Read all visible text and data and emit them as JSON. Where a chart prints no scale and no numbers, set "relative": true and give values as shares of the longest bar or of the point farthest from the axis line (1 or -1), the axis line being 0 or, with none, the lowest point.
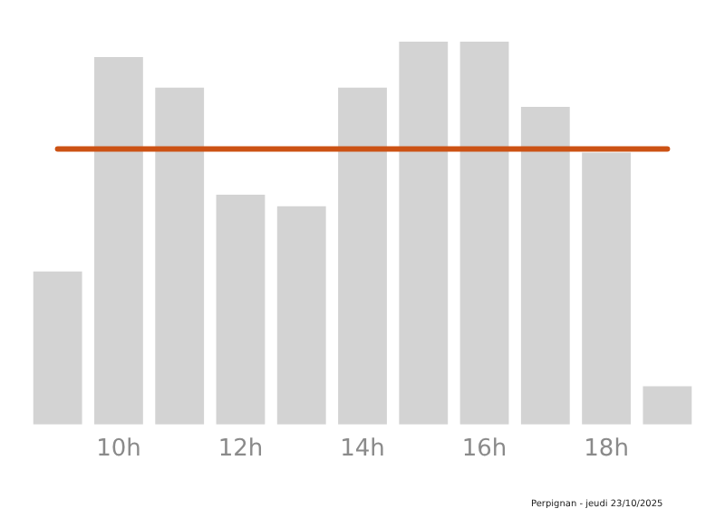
{
  "chart_data": {
    "type": "bar",
    "relative": true,
    "categories": [
      null,
      "10h",
      null,
      "12h",
      null,
      "14h",
      null,
      "16h",
      null,
      "18h",
      null
    ],
    "values": [
      0.4,
      0.96,
      0.88,
      0.6,
      0.57,
      0.88,
      1.0,
      1.0,
      0.83,
      0.71,
      0.1
    ],
    "color": "#d3d3d3",
    "ref_lines": [
      {
        "axis": "y",
        "value": 0.72,
        "color": "#cc5214"
      }
    ],
    "annotations": [
      "Perpignan - jeudi 23/10/2025"
    ],
    "grid": false,
    "legend": false
  }
}
